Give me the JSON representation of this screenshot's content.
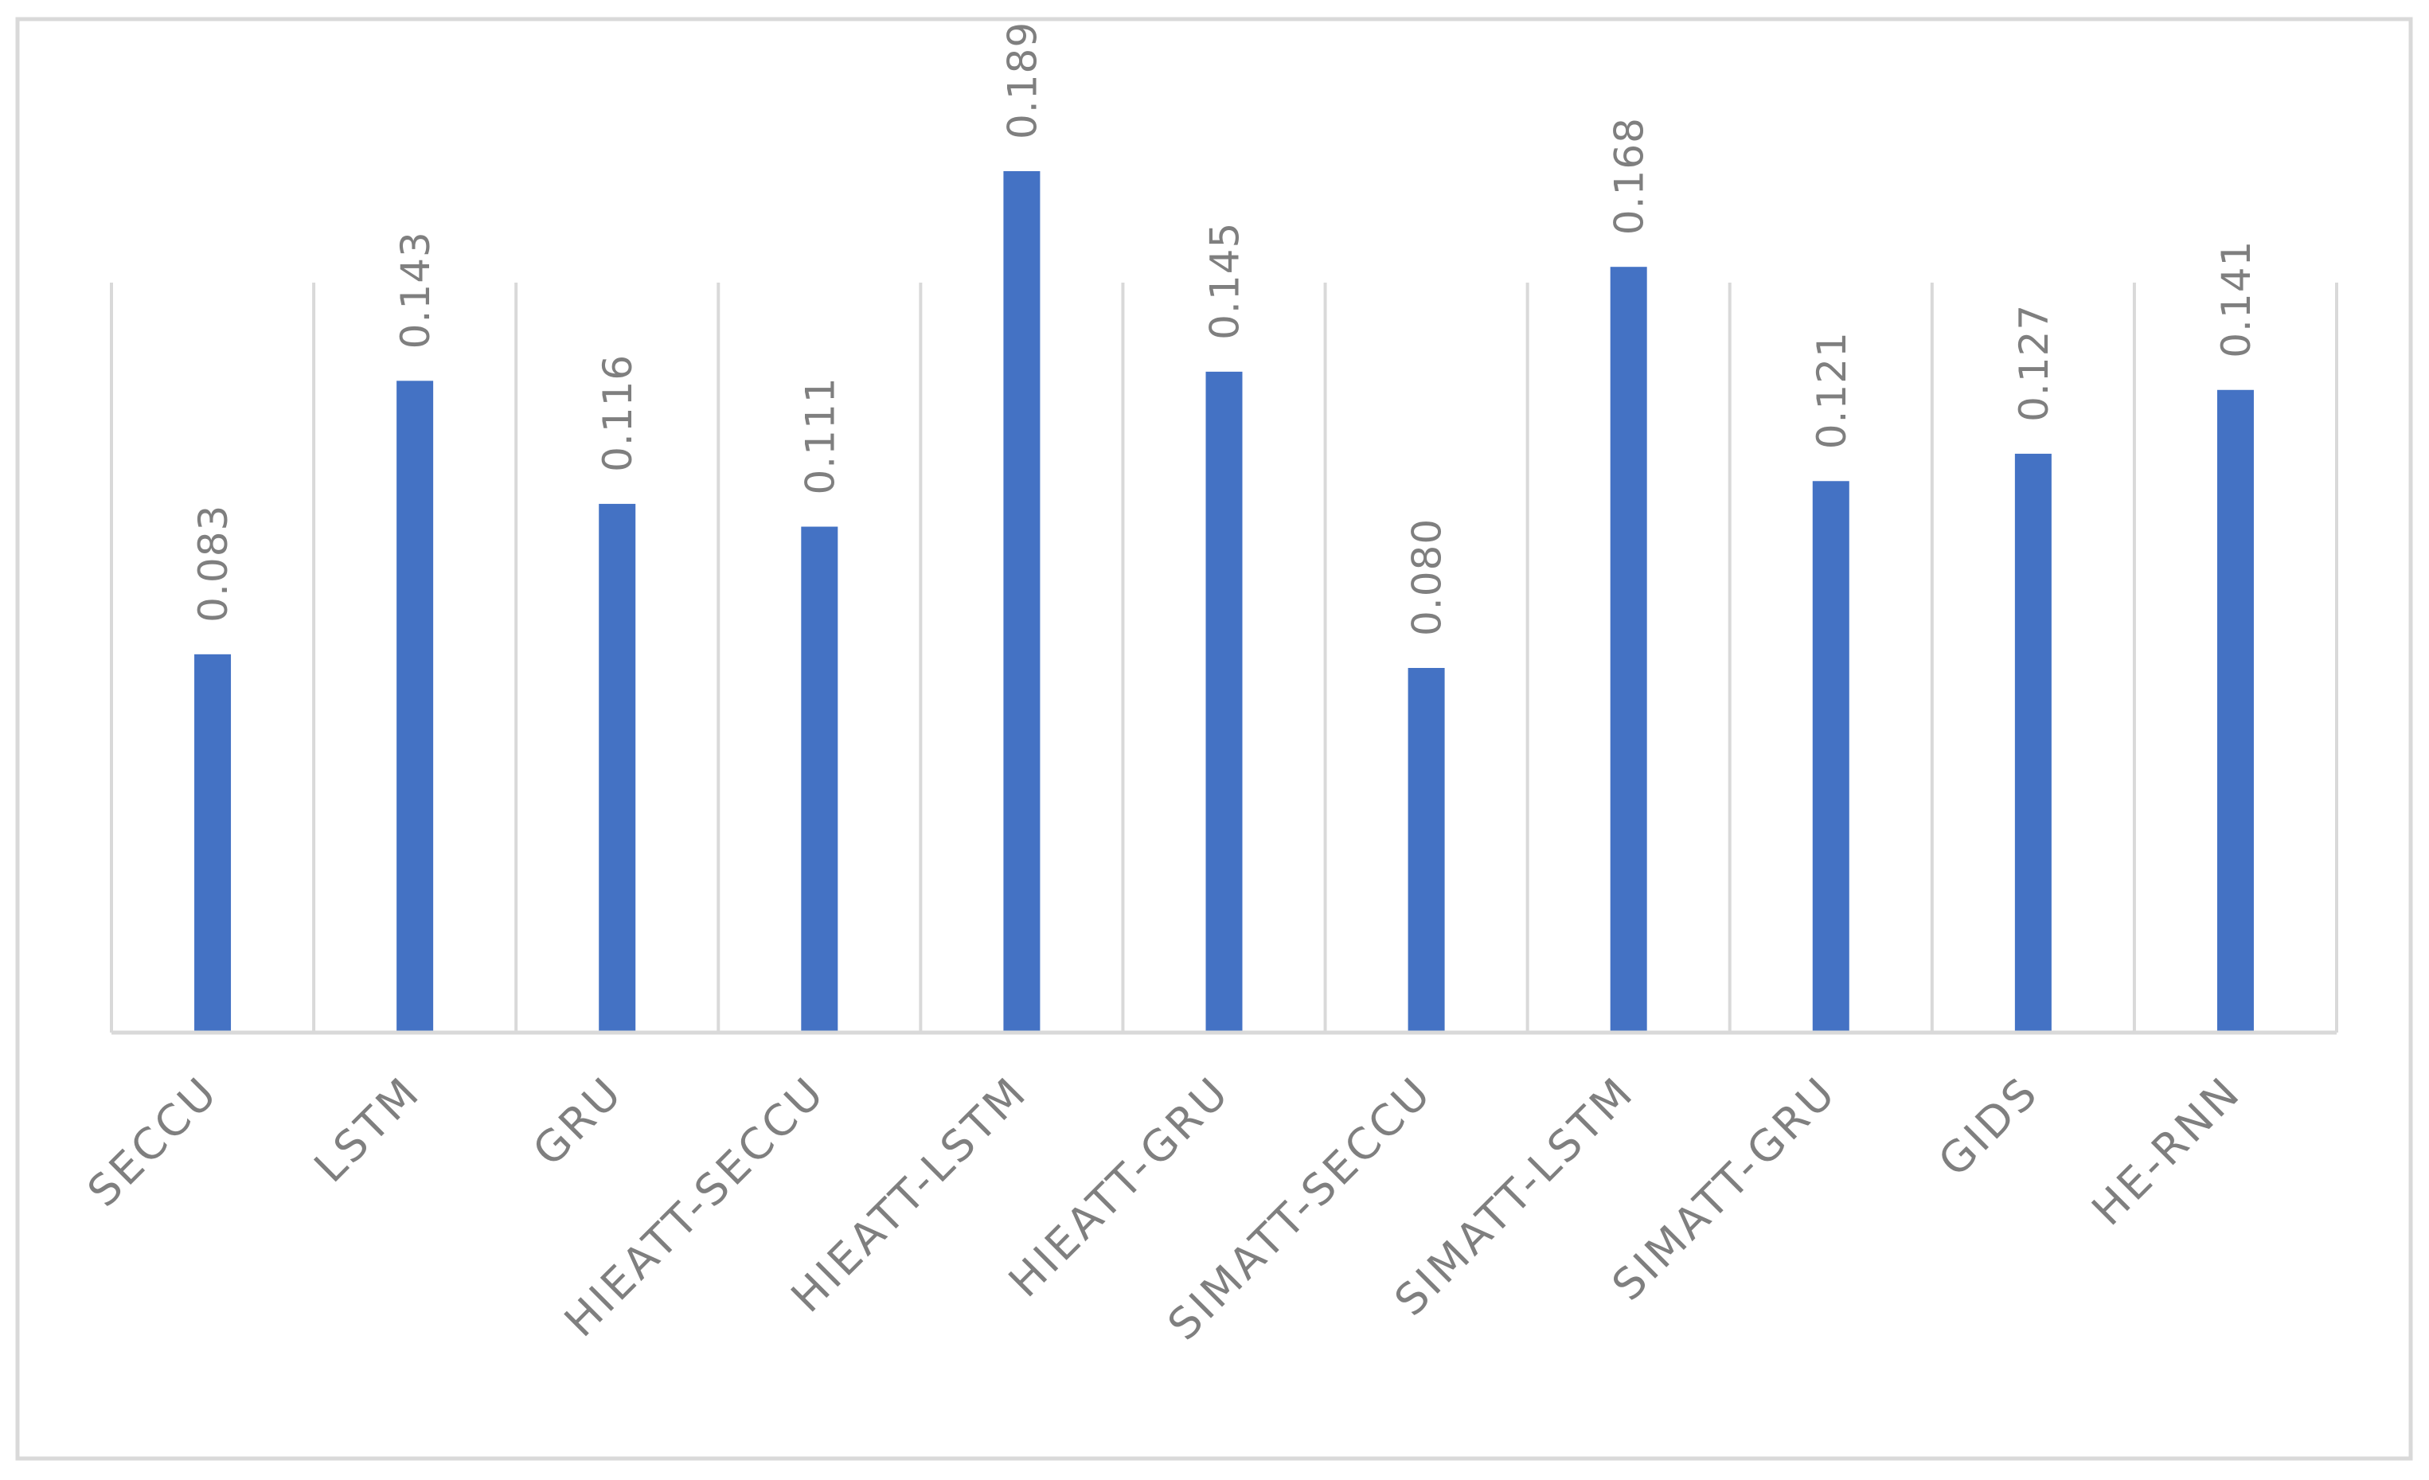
{
  "chart_data": {
    "type": "bar",
    "title": "",
    "xlabel": "",
    "ylabel": "",
    "categories": [
      "SECCU",
      "LSTM",
      "GRU",
      "HIEATT-SECCU",
      "HIEATT-LSTM",
      "HIEATT-GRU",
      "SIMATT-SECCU",
      "SIMATT-LSTM",
      "SIMATT-GRU",
      "GIDS",
      "HE-RNN"
    ],
    "series": [
      {
        "values": [
          0.083,
          0.143,
          0.116,
          0.111,
          0.189,
          0.145,
          0.08,
          0.168,
          0.121,
          0.127,
          0.141
        ],
        "value_labels": [
          "0.083",
          "0.143",
          "0.116",
          "0.111",
          "0.189",
          "0.145",
          "0.080",
          "0.168",
          "0.121",
          "0.127",
          "0.141"
        ]
      }
    ],
    "ylim": [
      0,
      0.2
    ],
    "grid": "vertical-separators",
    "legend": "none",
    "colors": {
      "bar": "#4472c4",
      "grid": "#d9d9d9",
      "axis": "#d9d9d9",
      "frame": "#d9d9d9",
      "text": "#7f7f7f"
    }
  }
}
